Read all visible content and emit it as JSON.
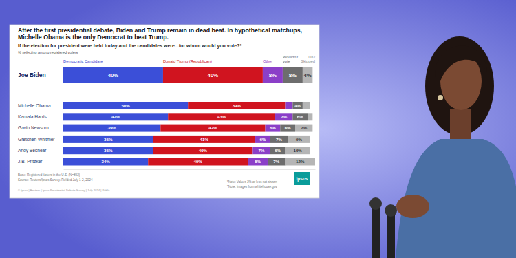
{
  "chart_data": {
    "type": "bar",
    "orientation": "horizontal",
    "stacked": true,
    "data_labels": true,
    "tick_labels": false,
    "legend": "top",
    "title": "After the first presidential debate, Biden and Trump remain in dead heat. In hypothetical matchups, Michelle Obama is the only Democrat to beat Trump.",
    "subtitle": "If the election for president were held today and the candidates were...for whom would you vote?*",
    "annotations": [
      "% selecting among registered voters",
      "Base: Registered Voters in the U.S. (N=892)",
      "Source: Reuters/Ipsos Survey. Fielded July 1-2, 2024",
      "© Ipsos | Reuters | Ipsos Presidential Debate Survey | July 2024 | Public",
      "*Note: Values 3% or less not shown",
      "*Note: Images from whitehouse.gov",
      "Ipsos"
    ],
    "categories": [
      "Joe Biden",
      "Michelle Obama",
      "Kamala Harris",
      "Gavin Newsom",
      "Gretchen Whitmer",
      "Andy Beshear",
      "J.B. Pritzker"
    ],
    "xlim": [
      0,
      101
    ],
    "series": [
      {
        "name": "Democratic Candidate",
        "color": "#3b4fd8",
        "values": [
          40,
          50,
          42,
          39,
          36,
          36,
          34
        ],
        "value_labels": [
          "40%",
          "50%",
          "42%",
          "39%",
          "36%",
          "36%",
          "34%"
        ]
      },
      {
        "name": "Donald Trump (Republican)",
        "color": "#d0141f",
        "values": [
          40,
          39,
          43,
          42,
          41,
          40,
          40
        ],
        "value_labels": [
          "40%",
          "39%",
          "43%",
          "42%",
          "41%",
          "40%",
          "40%"
        ]
      },
      {
        "name": "Other",
        "color": "#8b3fc8",
        "values": [
          8,
          3,
          7,
          6,
          6,
          7,
          8
        ],
        "value_labels": [
          "8%",
          null,
          "7%",
          "6%",
          "6%",
          "7%",
          "8%"
        ]
      },
      {
        "name": "Wouldn't vote",
        "color": "#6d6d6d",
        "values": [
          8,
          4,
          6,
          6,
          7,
          6,
          7
        ],
        "value_labels": [
          "8%",
          "4%",
          "6%",
          "6%",
          "7%",
          "6%",
          "7%"
        ]
      },
      {
        "name": "DK/Skipped",
        "color": "#b5b5b5",
        "values": [
          4,
          3,
          2,
          7,
          9,
          10,
          12
        ],
        "value_labels": [
          "4%",
          null,
          null,
          "7%",
          "9%",
          "10%",
          "12%"
        ]
      }
    ]
  }
}
